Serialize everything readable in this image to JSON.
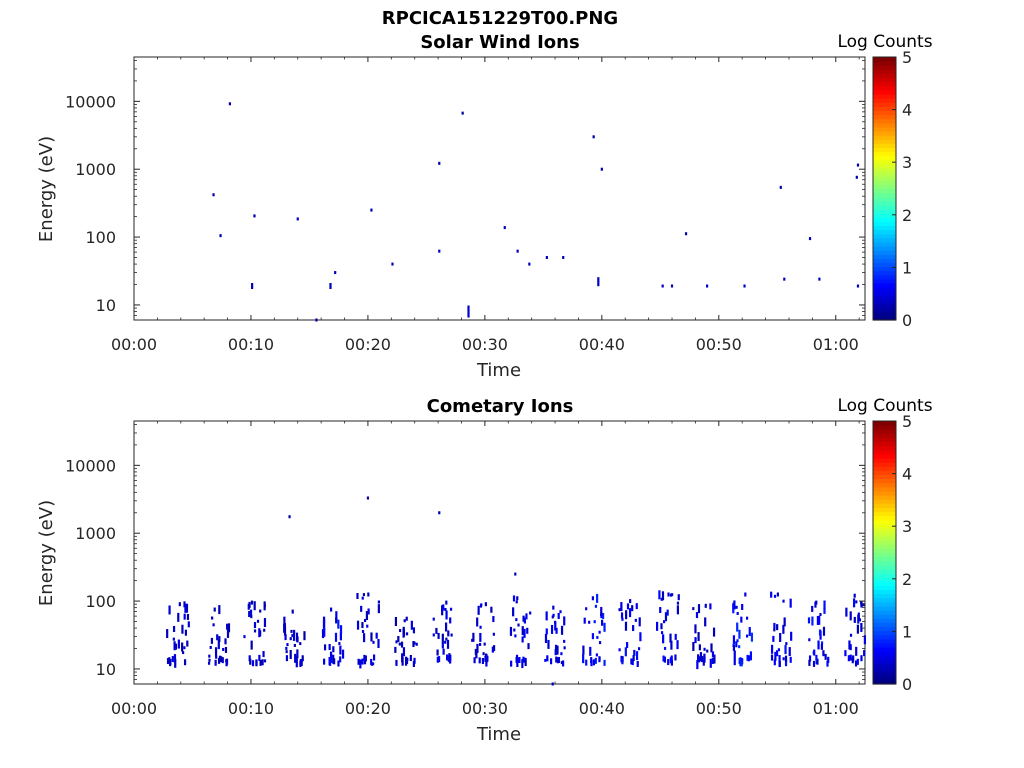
{
  "figure_title": "RPCICA151229T00.PNG",
  "chart_data": [
    {
      "type": "heatmap",
      "title": "Solar Wind Ions",
      "xlabel": "Time",
      "ylabel": "Energy (eV)",
      "x_ticks": [
        "00:00",
        "00:10",
        "00:20",
        "00:30",
        "00:40",
        "00:50",
        "01:00"
      ],
      "y_ticks": [
        "10",
        "100",
        "1000",
        "10000"
      ],
      "y_scale": "log",
      "x_range_min": [
        0,
        62.5
      ],
      "y_range_ev": [
        6,
        45000
      ],
      "colorbar": {
        "label": "Log Counts",
        "ticks": [
          "0",
          "1",
          "2",
          "3",
          "4",
          "5"
        ],
        "range": [
          0,
          5
        ],
        "colormap": "jet"
      },
      "points": [
        {
          "t": 6.8,
          "e": 420,
          "v": 0.2
        },
        {
          "t": 7.4,
          "e": 105,
          "v": 0.2
        },
        {
          "t": 8.2,
          "e": 9200,
          "v": 0.2
        },
        {
          "t": 10.1,
          "e": 19,
          "v": 0.3,
          "dup": 2
        },
        {
          "t": 10.3,
          "e": 205,
          "v": 0.2
        },
        {
          "t": 14.0,
          "e": 185,
          "v": 0.3
        },
        {
          "t": 15.6,
          "e": 6,
          "v": 0.2
        },
        {
          "t": 16.8,
          "e": 19,
          "v": 0.3,
          "dup": 2
        },
        {
          "t": 17.2,
          "e": 30,
          "v": 0.3
        },
        {
          "t": 20.3,
          "e": 250,
          "v": 0.2
        },
        {
          "t": 22.1,
          "e": 40,
          "v": 0.3
        },
        {
          "t": 26.1,
          "e": 1220,
          "v": 0.2
        },
        {
          "t": 26.1,
          "e": 62,
          "v": 0.3
        },
        {
          "t": 28.1,
          "e": 6700,
          "v": 0.2
        },
        {
          "t": 28.6,
          "e": 8,
          "v": 0.4,
          "dup": 4
        },
        {
          "t": 31.7,
          "e": 138,
          "v": 0.3
        },
        {
          "t": 32.8,
          "e": 62,
          "v": 0.3
        },
        {
          "t": 33.8,
          "e": 40,
          "v": 0.3
        },
        {
          "t": 35.3,
          "e": 50,
          "v": 0.3
        },
        {
          "t": 36.7,
          "e": 50,
          "v": 0.3
        },
        {
          "t": 39.3,
          "e": 3000,
          "v": 0.2
        },
        {
          "t": 39.7,
          "e": 22,
          "v": 0.3,
          "dup": 3
        },
        {
          "t": 40.0,
          "e": 1000,
          "v": 0.2
        },
        {
          "t": 45.2,
          "e": 19,
          "v": 0.3
        },
        {
          "t": 46.0,
          "e": 19,
          "v": 0.3
        },
        {
          "t": 47.2,
          "e": 112,
          "v": 0.2
        },
        {
          "t": 49.0,
          "e": 19,
          "v": 0.3
        },
        {
          "t": 52.2,
          "e": 19,
          "v": 0.3
        },
        {
          "t": 55.3,
          "e": 540,
          "v": 0.2
        },
        {
          "t": 55.6,
          "e": 24,
          "v": 0.3
        },
        {
          "t": 57.8,
          "e": 95,
          "v": 0.3
        },
        {
          "t": 58.6,
          "e": 24,
          "v": 0.3
        },
        {
          "t": 61.8,
          "e": 760,
          "v": 0.2
        },
        {
          "t": 61.9,
          "e": 1150,
          "v": 0.2
        },
        {
          "t": 61.9,
          "e": 19,
          "v": 0.3
        }
      ]
    },
    {
      "type": "heatmap",
      "title": "Cometary Ions",
      "xlabel": "Time",
      "ylabel": "Energy (eV)",
      "x_ticks": [
        "00:00",
        "00:10",
        "00:20",
        "00:30",
        "00:40",
        "00:50",
        "01:00"
      ],
      "y_ticks": [
        "10",
        "100",
        "1000",
        "10000"
      ],
      "y_scale": "log",
      "x_range_min": [
        0,
        62.5
      ],
      "y_range_ev": [
        6,
        45000
      ],
      "colorbar": {
        "label": "Log Counts",
        "ticks": [
          "0",
          "1",
          "2",
          "3",
          "4",
          "5"
        ],
        "range": [
          0,
          5
        ],
        "colormap": "jet"
      },
      "sparse_points": [
        {
          "t": 13.3,
          "e": 1750,
          "v": 0.2
        },
        {
          "t": 20.0,
          "e": 3300,
          "v": 0.2
        },
        {
          "t": 26.1,
          "e": 2000,
          "v": 0.2
        },
        {
          "t": 32.6,
          "e": 250,
          "v": 0.2
        },
        {
          "t": 35.8,
          "e": 6,
          "v": 0.3
        }
      ],
      "bursts": [
        {
          "t": 3.7,
          "peak_e": 90,
          "v": 0.35,
          "seed": 1
        },
        {
          "t": 7.2,
          "peak_e": 75,
          "v": 0.3,
          "seed": 2
        },
        {
          "t": 10.3,
          "peak_e": 95,
          "v": 0.35,
          "seed": 3
        },
        {
          "t": 13.7,
          "peak_e": 70,
          "v": 0.35,
          "seed": 4
        },
        {
          "t": 16.9,
          "peak_e": 75,
          "v": 0.55,
          "seed": 5
        },
        {
          "t": 20.0,
          "peak_e": 125,
          "v": 0.4,
          "seed": 6
        },
        {
          "t": 23.2,
          "peak_e": 55,
          "v": 0.35,
          "seed": 7
        },
        {
          "t": 26.5,
          "peak_e": 95,
          "v": 0.4,
          "seed": 8
        },
        {
          "t": 29.8,
          "peak_e": 90,
          "v": 0.4,
          "seed": 9
        },
        {
          "t": 33.0,
          "peak_e": 110,
          "v": 0.45,
          "seed": 10
        },
        {
          "t": 36.0,
          "peak_e": 80,
          "v": 0.45,
          "seed": 11
        },
        {
          "t": 39.3,
          "peak_e": 110,
          "v": 0.6,
          "seed": 12
        },
        {
          "t": 42.4,
          "peak_e": 100,
          "v": 0.5,
          "seed": 13
        },
        {
          "t": 45.6,
          "peak_e": 125,
          "v": 0.5,
          "seed": 14
        },
        {
          "t": 48.7,
          "peak_e": 85,
          "v": 0.4,
          "seed": 15
        },
        {
          "t": 52.0,
          "peak_e": 125,
          "v": 0.65,
          "seed": 16
        },
        {
          "t": 55.3,
          "peak_e": 125,
          "v": 0.5,
          "seed": 17
        },
        {
          "t": 58.5,
          "peak_e": 95,
          "v": 0.55,
          "seed": 18
        },
        {
          "t": 61.7,
          "peak_e": 120,
          "v": 0.45,
          "seed": 19
        }
      ]
    }
  ]
}
